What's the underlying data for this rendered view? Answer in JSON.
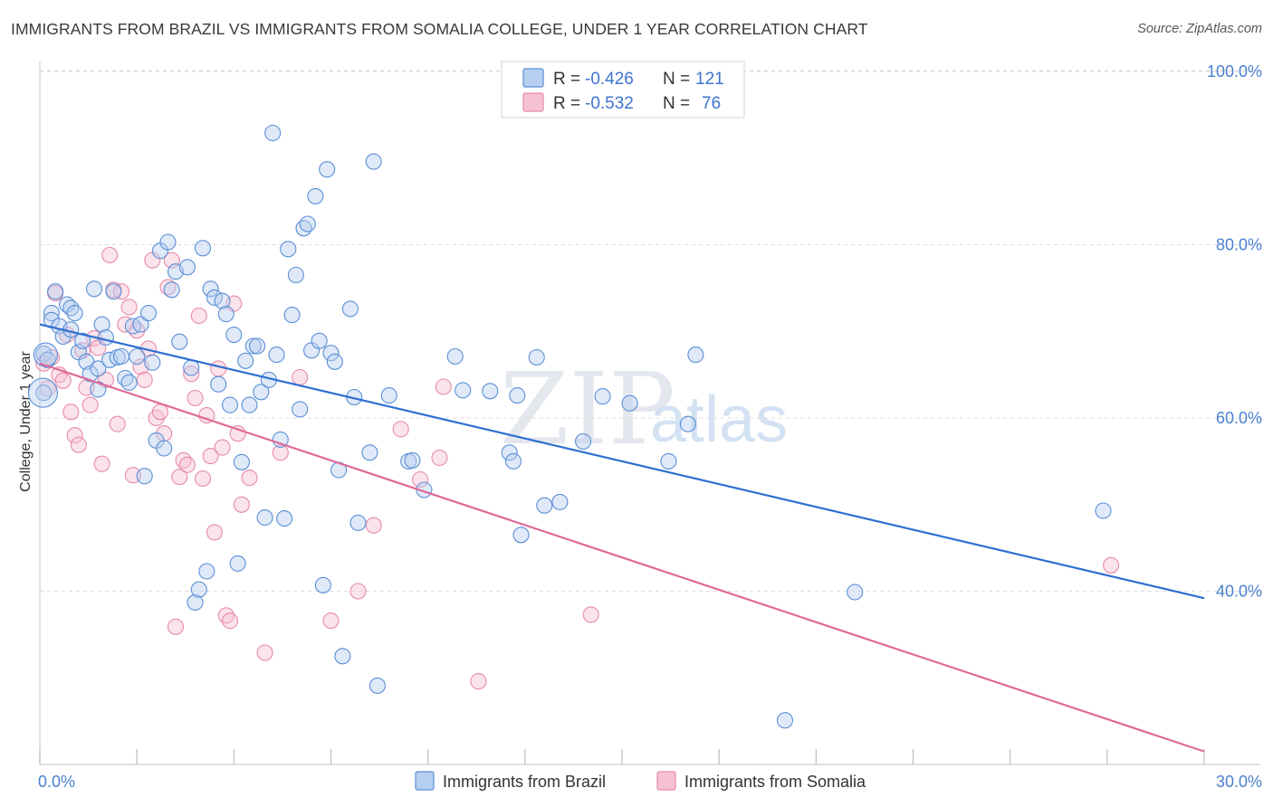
{
  "title": "IMMIGRANTS FROM BRAZIL VS IMMIGRANTS FROM SOMALIA COLLEGE, UNDER 1 YEAR CORRELATION CHART",
  "source": "Source: ZipAtlas.com",
  "watermark": {
    "zip": "ZIP",
    "atlas": "atlas"
  },
  "colors": {
    "brazil": "#5b8fd6",
    "brazil_fill": "#b7cff0",
    "brazil_line": "#2f6fd0",
    "somalia": "#e78aaa",
    "somalia_fill": "#f6c1d3",
    "somalia_line": "#e0699a",
    "grid": "#dcdcdc",
    "tick_text": "#4a7fd0"
  },
  "legend": {
    "rows": [
      {
        "r_label": "R =",
        "r_value": "-0.426",
        "n_label": "N =",
        "n_value": "121"
      },
      {
        "r_label": "R =",
        "r_value": "-0.532",
        "n_label": "N =",
        "n_value": "76"
      }
    ]
  },
  "bottom_legend": {
    "brazil": "Immigrants from Brazil",
    "somalia": "Immigrants from Somalia"
  },
  "chart_data": {
    "type": "scatter",
    "title": "IMMIGRANTS FROM BRAZIL VS IMMIGRANTS FROM SOMALIA COLLEGE, UNDER 1 YEAR CORRELATION CHART",
    "xlabel": "",
    "ylabel": "College, Under 1 year",
    "xlim": [
      0,
      30
    ],
    "ylim": [
      20,
      102
    ],
    "x_tick_labels": [
      "0.0%",
      "30.0%"
    ],
    "y_ticks": [
      40,
      60,
      80,
      100
    ],
    "y_tick_labels": [
      "40.0%",
      "60.0%",
      "80.0%",
      "100.0%"
    ],
    "grid": true,
    "legend_position": "top-center",
    "series": [
      {
        "name": "Immigrants from Brazil",
        "r": -0.426,
        "n": 121,
        "trend": {
          "x": [
            0,
            30
          ],
          "y": [
            70.8,
            39.2
          ]
        },
        "points": [
          [
            0.1,
            62.9
          ],
          [
            0.1,
            67.4
          ],
          [
            0.2,
            66.7
          ],
          [
            0.3,
            72.1
          ],
          [
            0.3,
            71.3
          ],
          [
            0.4,
            74.6
          ],
          [
            0.5,
            70.6
          ],
          [
            0.6,
            69.4
          ],
          [
            0.7,
            73.1
          ],
          [
            0.8,
            72.7
          ],
          [
            0.8,
            70.2
          ],
          [
            0.9,
            72.1
          ],
          [
            1.0,
            67.6
          ],
          [
            1.1,
            68.9
          ],
          [
            1.2,
            66.5
          ],
          [
            1.3,
            65.1
          ],
          [
            1.4,
            74.9
          ],
          [
            1.5,
            63.3
          ],
          [
            1.5,
            65.7
          ],
          [
            1.6,
            70.8
          ],
          [
            1.7,
            69.3
          ],
          [
            1.8,
            66.7
          ],
          [
            1.9,
            74.6
          ],
          [
            2.0,
            67.0
          ],
          [
            2.1,
            67.1
          ],
          [
            2.2,
            64.6
          ],
          [
            2.3,
            64.1
          ],
          [
            2.4,
            70.6
          ],
          [
            2.5,
            67.1
          ],
          [
            2.6,
            70.8
          ],
          [
            2.7,
            53.3
          ],
          [
            2.8,
            72.1
          ],
          [
            2.9,
            66.4
          ],
          [
            3.0,
            57.4
          ],
          [
            3.1,
            79.3
          ],
          [
            3.2,
            56.5
          ],
          [
            3.3,
            80.3
          ],
          [
            3.4,
            74.8
          ],
          [
            3.5,
            76.9
          ],
          [
            3.6,
            68.8
          ],
          [
            3.8,
            77.4
          ],
          [
            3.9,
            65.8
          ],
          [
            4.0,
            38.7
          ],
          [
            4.1,
            40.2
          ],
          [
            4.2,
            79.6
          ],
          [
            4.3,
            42.3
          ],
          [
            4.4,
            74.9
          ],
          [
            4.5,
            73.9
          ],
          [
            4.6,
            63.9
          ],
          [
            4.7,
            73.5
          ],
          [
            4.8,
            72.0
          ],
          [
            4.9,
            61.5
          ],
          [
            5.0,
            69.6
          ],
          [
            5.1,
            43.2
          ],
          [
            5.2,
            54.9
          ],
          [
            5.3,
            66.6
          ],
          [
            5.4,
            61.5
          ],
          [
            5.5,
            68.3
          ],
          [
            5.6,
            68.3
          ],
          [
            5.7,
            63.0
          ],
          [
            5.8,
            48.5
          ],
          [
            5.9,
            64.4
          ],
          [
            6.0,
            92.9
          ],
          [
            6.1,
            67.3
          ],
          [
            6.2,
            57.5
          ],
          [
            6.3,
            48.4
          ],
          [
            6.4,
            79.5
          ],
          [
            6.5,
            71.9
          ],
          [
            6.6,
            76.5
          ],
          [
            6.7,
            61.0
          ],
          [
            6.8,
            81.9
          ],
          [
            6.9,
            82.4
          ],
          [
            7.0,
            67.8
          ],
          [
            7.1,
            85.6
          ],
          [
            7.2,
            68.9
          ],
          [
            7.3,
            40.7
          ],
          [
            7.4,
            88.7
          ],
          [
            7.5,
            67.5
          ],
          [
            7.6,
            66.5
          ],
          [
            7.7,
            54.0
          ],
          [
            7.8,
            32.5
          ],
          [
            8.0,
            72.6
          ],
          [
            8.1,
            62.4
          ],
          [
            8.2,
            47.9
          ],
          [
            8.5,
            56.0
          ],
          [
            8.6,
            89.6
          ],
          [
            8.7,
            29.1
          ],
          [
            9.0,
            62.6
          ],
          [
            9.5,
            55.0
          ],
          [
            9.6,
            55.1
          ],
          [
            9.9,
            51.7
          ],
          [
            10.7,
            67.1
          ],
          [
            10.9,
            63.2
          ],
          [
            11.6,
            63.1
          ],
          [
            12.1,
            56.0
          ],
          [
            12.2,
            55.0
          ],
          [
            12.3,
            62.6
          ],
          [
            12.4,
            46.5
          ],
          [
            12.8,
            67.0
          ],
          [
            13.0,
            49.9
          ],
          [
            13.4,
            50.3
          ],
          [
            14.0,
            57.3
          ],
          [
            14.5,
            62.5
          ],
          [
            15.2,
            61.7
          ],
          [
            16.2,
            55.0
          ],
          [
            16.7,
            59.3
          ],
          [
            16.9,
            67.3
          ],
          [
            19.2,
            25.1
          ],
          [
            21.0,
            39.9
          ],
          [
            27.4,
            49.3
          ]
        ]
      },
      {
        "name": "Immigrants from Somalia",
        "r": -0.532,
        "n": 76,
        "trend": {
          "x": [
            0,
            30
          ],
          "y": [
            66.3,
            21.5
          ]
        },
        "points": [
          [
            0.1,
            66.3
          ],
          [
            0.2,
            63.4
          ],
          [
            0.3,
            67.0
          ],
          [
            0.4,
            74.4
          ],
          [
            0.5,
            65.0
          ],
          [
            0.6,
            64.3
          ],
          [
            0.7,
            69.6
          ],
          [
            0.8,
            60.7
          ],
          [
            0.9,
            58.0
          ],
          [
            1.0,
            56.9
          ],
          [
            1.1,
            67.8
          ],
          [
            1.2,
            63.5
          ],
          [
            1.3,
            61.5
          ],
          [
            1.4,
            69.2
          ],
          [
            1.5,
            68.1
          ],
          [
            1.6,
            54.7
          ],
          [
            1.7,
            64.4
          ],
          [
            1.8,
            78.8
          ],
          [
            1.9,
            74.8
          ],
          [
            2.0,
            59.3
          ],
          [
            2.1,
            74.6
          ],
          [
            2.2,
            70.8
          ],
          [
            2.3,
            72.8
          ],
          [
            2.4,
            53.4
          ],
          [
            2.5,
            70.1
          ],
          [
            2.6,
            65.9
          ],
          [
            2.7,
            64.4
          ],
          [
            2.8,
            68.0
          ],
          [
            2.9,
            78.2
          ],
          [
            3.0,
            60.0
          ],
          [
            3.1,
            60.7
          ],
          [
            3.2,
            58.2
          ],
          [
            3.3,
            75.1
          ],
          [
            3.4,
            78.2
          ],
          [
            3.5,
            35.9
          ],
          [
            3.6,
            53.2
          ],
          [
            3.7,
            55.1
          ],
          [
            3.8,
            54.6
          ],
          [
            3.9,
            65.1
          ],
          [
            4.0,
            62.3
          ],
          [
            4.1,
            71.8
          ],
          [
            4.2,
            53.0
          ],
          [
            4.3,
            60.3
          ],
          [
            4.4,
            55.6
          ],
          [
            4.5,
            46.8
          ],
          [
            4.6,
            65.7
          ],
          [
            4.7,
            56.6
          ],
          [
            4.8,
            37.2
          ],
          [
            4.9,
            36.6
          ],
          [
            5.0,
            73.2
          ],
          [
            5.1,
            58.2
          ],
          [
            5.2,
            50.0
          ],
          [
            5.4,
            53.1
          ],
          [
            5.8,
            32.9
          ],
          [
            6.2,
            56.0
          ],
          [
            6.7,
            64.7
          ],
          [
            7.5,
            36.6
          ],
          [
            8.2,
            40.0
          ],
          [
            8.6,
            47.6
          ],
          [
            9.3,
            58.7
          ],
          [
            9.8,
            52.9
          ],
          [
            10.3,
            55.4
          ],
          [
            10.4,
            63.6
          ],
          [
            11.3,
            29.6
          ],
          [
            14.2,
            37.3
          ],
          [
            27.6,
            43.0
          ]
        ]
      }
    ]
  }
}
